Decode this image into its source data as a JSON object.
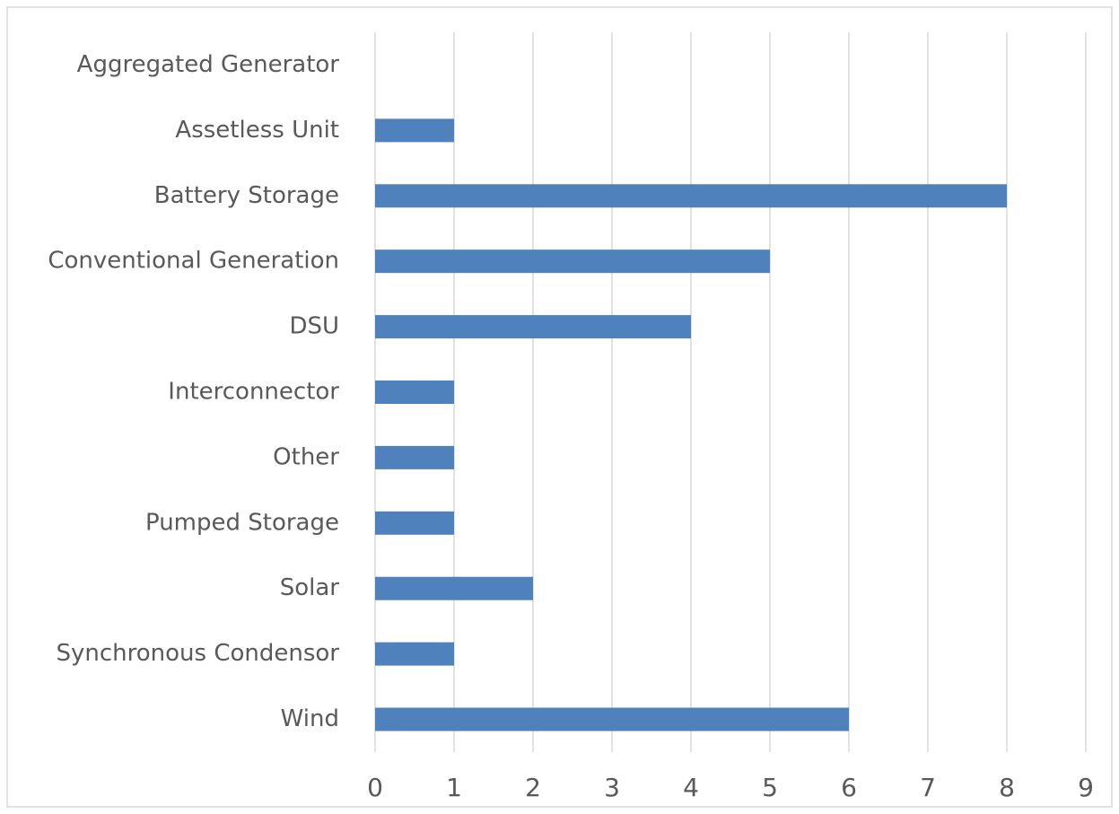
{
  "chart_data": {
    "type": "bar",
    "categories": [
      "Aggregated Generator",
      "Assetless Unit",
      "Battery Storage",
      "Conventional Generation",
      "DSU",
      "Interconnector",
      "Other",
      "Pumped Storage",
      "Solar",
      "Synchronous Condensor",
      "Wind"
    ],
    "values": [
      0,
      1,
      8,
      5,
      4,
      1,
      1,
      1,
      2,
      1,
      6
    ],
    "color": "#4f81bd",
    "xlim": [
      0,
      9
    ],
    "xticks": [
      0,
      1,
      2,
      3,
      4,
      5,
      6,
      7,
      8,
      9
    ],
    "grid": true
  }
}
